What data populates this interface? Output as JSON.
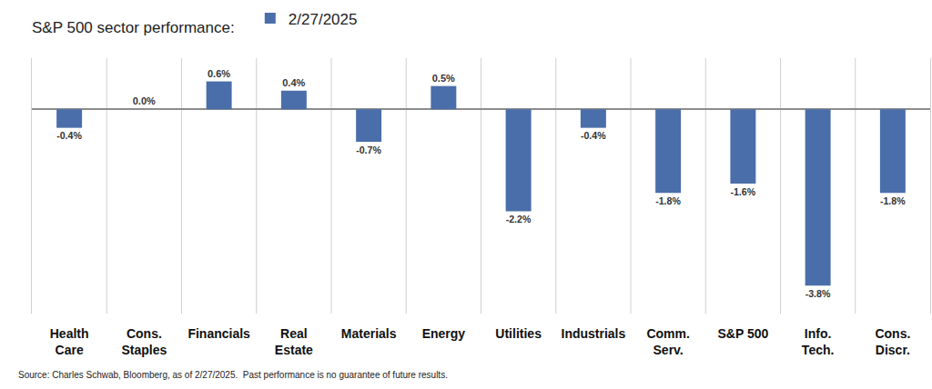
{
  "chart_data": {
    "type": "bar",
    "title": "S&P 500 sector performance:",
    "categories": [
      "Health Care",
      "Cons. Staples",
      "Financials",
      "Real Estate",
      "Materials",
      "Energy",
      "Utilities",
      "Industrials",
      "Comm. Serv.",
      "S&P 500",
      "Info. Tech.",
      "Cons. Discr."
    ],
    "series": [
      {
        "name": "2/27/2025",
        "color": "#4a6ea9",
        "values": [
          -0.4,
          0.0,
          0.6,
          0.4,
          -0.7,
          0.5,
          -2.2,
          -0.4,
          -1.8,
          -1.6,
          -3.8,
          -1.8
        ],
        "value_labels": [
          "-0.4%",
          "0.0%",
          "0.6%",
          "0.4%",
          "-0.7%",
          "0.5%",
          "-2.2%",
          "-0.4%",
          "-1.8%",
          "-1.6%",
          "-3.8%",
          "-1.8%"
        ]
      }
    ],
    "ylim": [
      -4.4,
      1.1
    ],
    "data_labels": true,
    "tick_labels": "x",
    "legend": "top",
    "source": "Source: Charles Schwab, Bloomberg, as of 2/27/2025.  Past performance is no guarantee of future results."
  }
}
